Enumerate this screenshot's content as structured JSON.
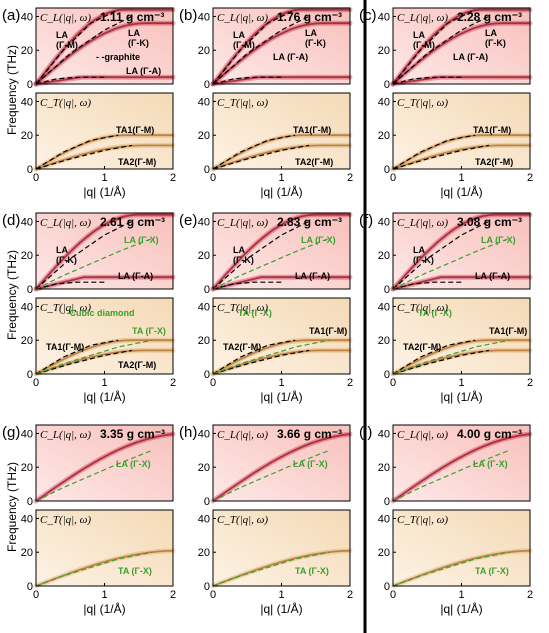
{
  "panels": [
    {
      "label": "(a)",
      "density": "1.11 g cm⁻³",
      "y_label_shown": true,
      "top_notes": [
        "LA\n(Γ-M)",
        "LA\n(Γ-K)",
        "- -graphite",
        "LA (Γ-A)"
      ],
      "bottom_notes": [
        "TA1(Γ-M)",
        "TA2(Γ-M)"
      ]
    },
    {
      "label": "(b)",
      "density": "1.76 g cm⁻³",
      "y_label_shown": false,
      "top_notes": [
        "LA\n(Γ-M)",
        "LA\n(Γ-K)",
        "LA (Γ-A)"
      ],
      "bottom_notes": [
        "TA1(Γ-M)",
        "TA2(Γ-M)"
      ]
    },
    {
      "label": "(c)",
      "density": "2.28 g cm⁻³",
      "y_label_shown": false,
      "top_notes": [
        "LA\n(Γ-M)",
        "LA\n(Γ-K)",
        "LA (Γ-A)"
      ],
      "bottom_notes": [
        "TA1(Γ-M)",
        "TA2(Γ-M)"
      ]
    },
    {
      "label": "(d)",
      "density": "2.61 g cm⁻³",
      "y_label_shown": true,
      "top_notes": [
        "LA\n(Γ-K)",
        "LA (Γ-X)",
        "LA (Γ-A)"
      ],
      "bottom_notes": [
        "- -Cubic diamond",
        "TA (Γ-X)",
        "TA1(Γ-M)",
        "TA2(Γ-M)"
      ]
    },
    {
      "label": "(e)",
      "density": "2.83 g cm⁻³",
      "y_label_shown": false,
      "top_notes": [
        "LA\n(Γ-K)",
        "LA (Γ-X)",
        "LA (Γ-A)"
      ],
      "bottom_notes": [
        "TA (Γ-X)",
        "TA1(Γ-M)",
        "TA2(Γ-M)"
      ]
    },
    {
      "label": "(f)",
      "density": "3.08 g cm⁻³",
      "y_label_shown": false,
      "top_notes": [
        "LA\n(Γ-K)",
        "LA (Γ-X)",
        "LA (Γ-A)"
      ],
      "bottom_notes": [
        "TA (Γ-X)",
        "TA1(Γ-M)",
        "TA2(Γ-M)"
      ]
    },
    {
      "label": "(g)",
      "density": "3.35 g cm⁻³",
      "y_label_shown": true,
      "top_notes": [
        "LA (Γ-X)"
      ],
      "bottom_notes": [
        "TA (Γ-X)"
      ]
    },
    {
      "label": "(h)",
      "density": "3.66 g cm⁻³",
      "y_label_shown": false,
      "top_notes": [
        "LA (Γ-X)"
      ],
      "bottom_notes": [
        "TA (Γ-X)"
      ]
    },
    {
      "label": "(i)",
      "density": "4.00 g cm⁻³",
      "y_label_shown": false,
      "top_notes": [
        "LA (Γ-X)"
      ],
      "bottom_notes": [
        "TA (Γ-X)"
      ]
    }
  ],
  "top_function": "C_L(|q|, ω)",
  "bottom_function": "C_T(|q|, ω)",
  "y_axis_label": "Frequency (THz)",
  "x_axis_label": "|q| (1/Å)",
  "colors": {
    "longitudinal": "#c8102e",
    "transverse": "#d9a15a",
    "green_dash": "#3aa02e",
    "black_dash": "#000000"
  },
  "chart_data": {
    "type": "heatmap",
    "subplot_grid": "3x3 panels, each with C_L (top) and C_T (bottom)",
    "x_range": [
      0,
      2
    ],
    "top_y_range": [
      0,
      45
    ],
    "bottom_y_range": [
      0,
      45
    ],
    "x_ticks": [
      0,
      1,
      2
    ],
    "y_ticks": [
      0,
      20,
      40
    ],
    "reference_curves": {
      "graphite": [
        {
          "name": "LA (Γ-M)",
          "x": [
            0,
            0.4,
            0.8,
            1.2
          ],
          "y": [
            0,
            20,
            36,
            44
          ]
        },
        {
          "name": "LA (Γ-K)",
          "x": [
            0,
            0.5,
            1.0,
            1.4
          ],
          "y": [
            0,
            18,
            32,
            40
          ]
        },
        {
          "name": "LA (Γ-A)",
          "x": [
            0,
            0.3,
            0.6,
            1.0
          ],
          "y": [
            0,
            3,
            4,
            4
          ]
        },
        {
          "name": "TA1(Γ-M)",
          "x": [
            0,
            0.4,
            0.8,
            1.2
          ],
          "y": [
            0,
            10,
            17,
            20
          ]
        },
        {
          "name": "TA2(Γ-M)",
          "x": [
            0,
            0.5,
            1.0,
            1.4
          ],
          "y": [
            0,
            6,
            11,
            14
          ]
        }
      ],
      "cubic_diamond": [
        {
          "name": "LA (Γ-X)",
          "x": [
            0,
            0.4,
            0.8,
            1.2,
            1.7
          ],
          "y": [
            0,
            8,
            15,
            22,
            30
          ]
        },
        {
          "name": "TA (Γ-X)",
          "x": [
            0,
            0.4,
            0.8,
            1.2,
            1.7
          ],
          "y": [
            0,
            6,
            11,
            16,
            20
          ]
        }
      ]
    }
  }
}
